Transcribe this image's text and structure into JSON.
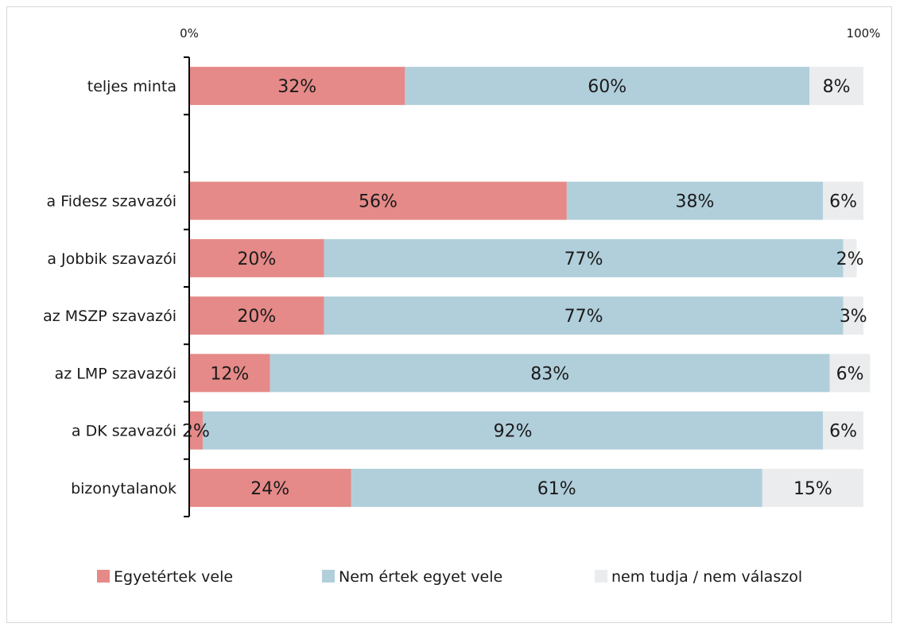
{
  "chart_data": {
    "type": "bar",
    "orientation": "horizontal",
    "stacked": true,
    "scale_labels": [
      "0%",
      "100%"
    ],
    "categories": [
      "teljes minta",
      "",
      "a Fidesz szavazói",
      "a Jobbik szavazói",
      "az MSZP szavazói",
      "az LMP szavazói",
      "a DK szavazói",
      "bizonytalanok"
    ],
    "xlim": [
      0,
      100
    ],
    "grid": false,
    "legend_position": "bottom",
    "series": [
      {
        "name": "Egyetértek vele",
        "color": "#e58a88",
        "values": [
          32,
          null,
          56,
          20,
          20,
          12,
          2,
          24
        ],
        "labels": [
          "32%",
          "",
          "56%",
          "20%",
          "20%",
          "12%",
          "2%",
          "24%"
        ]
      },
      {
        "name": "Nem értek egyet vele",
        "color": "#b1cfdb",
        "values": [
          60,
          null,
          38,
          77,
          77,
          83,
          92,
          61
        ],
        "labels": [
          "60%",
          "",
          "38%",
          "77%",
          "77%",
          "83%",
          "92%",
          "61%"
        ]
      },
      {
        "name": "nem tudja / nem válaszol",
        "color": "#ebecee",
        "values": [
          8,
          null,
          6,
          2,
          3,
          6,
          6,
          15
        ],
        "labels": [
          "8%",
          "",
          "6%",
          "2%",
          "3%",
          "6%",
          "6%",
          "15%"
        ]
      }
    ]
  }
}
